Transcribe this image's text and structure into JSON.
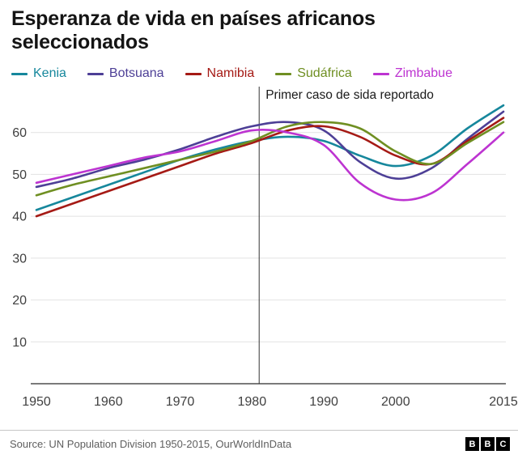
{
  "header": {
    "title": "Esperanza de vida en países africanos seleccionados"
  },
  "footer": {
    "source": "Source: UN Population Division 1950-2015, OurWorldInData",
    "logo_letters": [
      "B",
      "B",
      "C"
    ]
  },
  "chart_data": {
    "type": "line",
    "title": "Esperanza de vida en países africanos seleccionados",
    "xlabel": "",
    "ylabel": "",
    "x": [
      1950,
      1955,
      1960,
      1965,
      1970,
      1975,
      1980,
      1985,
      1990,
      1995,
      2000,
      2005,
      2010,
      2015
    ],
    "series": [
      {
        "name": "Kenia",
        "color": "#16879c",
        "values": [
          41.5,
          44.5,
          47.5,
          50.5,
          53.5,
          56.0,
          58.0,
          59.0,
          58.0,
          54.5,
          52.0,
          54.5,
          61.0,
          66.5
        ]
      },
      {
        "name": "Botsuana",
        "color": "#4d3f96",
        "values": [
          47.0,
          49.0,
          51.5,
          53.5,
          56.0,
          59.0,
          61.5,
          62.5,
          60.5,
          53.0,
          49.0,
          51.5,
          58.5,
          65.0
        ]
      },
      {
        "name": "Namibia",
        "color": "#a51a15",
        "values": [
          40.0,
          43.0,
          46.0,
          49.0,
          52.0,
          55.0,
          57.5,
          60.5,
          61.5,
          59.0,
          54.5,
          52.5,
          58.0,
          63.5
        ]
      },
      {
        "name": "Sudáfrica",
        "color": "#6f8f22",
        "values": [
          45.0,
          47.5,
          49.5,
          51.5,
          53.5,
          55.5,
          58.0,
          61.5,
          62.5,
          61.0,
          55.5,
          52.5,
          57.5,
          62.5
        ]
      },
      {
        "name": "Zimbabue",
        "color": "#bd34d1",
        "values": [
          48.0,
          50.0,
          52.0,
          54.0,
          55.5,
          58.0,
          60.5,
          60.0,
          57.0,
          48.0,
          44.0,
          45.5,
          52.5,
          60.0
        ]
      }
    ],
    "ylim": [
      0,
      70
    ],
    "yticks": [
      10,
      20,
      30,
      40,
      50,
      60
    ],
    "xticks": [
      1950,
      1960,
      1970,
      1980,
      1990,
      2000,
      2015
    ],
    "grid": true,
    "legend_position": "top",
    "annotation": {
      "x": 1981,
      "label": "Primer caso de sida reportado"
    },
    "colors": {
      "grid": "#e2e2e2",
      "axis": "#2b2b2b",
      "tick_text": "#404040",
      "annotation_line": "#333333",
      "annotation_text": "#1a1a1a"
    }
  }
}
